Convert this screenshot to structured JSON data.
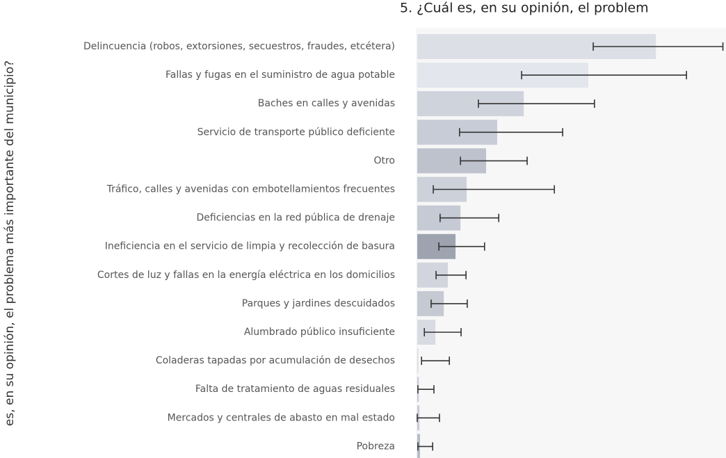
{
  "chart_data": {
    "type": "bar",
    "orientation": "horizontal",
    "title": "5. ¿Cuál es, en su opinión, el problem",
    "y_label": "es, en su opinión, el problema más importante del municipio?",
    "categories": [
      "Delincuencia (robos, extorsiones, secuestros, fraudes, etcétera)",
      "Fallas y fugas en el suministro de agua potable",
      "Baches en calles y avenidas",
      "Servicio de transporte público deficiente",
      "Otro",
      "Tráfico, calles y avenidas con embotellamientos frecuentes",
      "Deficiencias en la red pública de drenaje",
      "Ineficiencia en el servicio de limpia y recolección de basura",
      "Cortes de luz y fallas en la energía eléctrica en los domicilios",
      "Parques y jardines descuidados",
      "Alumbrado público insuficiente",
      "Coladeras tapadas por acumulación de desechos",
      "Falta de tratamiento de aguas residuales",
      "Mercados y centrales de abasto en mal estado",
      "Pobreza"
    ],
    "values": [
      77.3,
      55.4,
      34.5,
      25.9,
      22.3,
      16,
      14,
      12.4,
      9.9,
      8.6,
      5.9,
      0.3,
      0.5,
      0.7,
      0.9
    ],
    "error_low": [
      57,
      33.8,
      19.8,
      13.7,
      14,
      5.2,
      7.4,
      7,
      6.1,
      4.5,
      2.3,
      1.4,
      0.2,
      0,
      0.2
    ],
    "error_high": [
      99,
      87.2,
      57.4,
      47.1,
      35.6,
      44.4,
      26.4,
      21.8,
      15.8,
      16.2,
      14.2,
      10.4,
      5.4,
      7.2,
      5
    ],
    "colors": [
      "#dcdfe6",
      "#e3e6ec",
      "#cfd3dc",
      "#c8ccd6",
      "#bec2cd",
      "#cdd1da",
      "#c6cad4",
      "#9ea3b0",
      "#d2d5dd",
      "#c5c9d2",
      "#d8dbe2",
      "#d8dbe2",
      "#c9ccd6",
      "#c9ccd6",
      "#b7bcc8"
    ],
    "xlim": [
      0,
      100
    ]
  }
}
